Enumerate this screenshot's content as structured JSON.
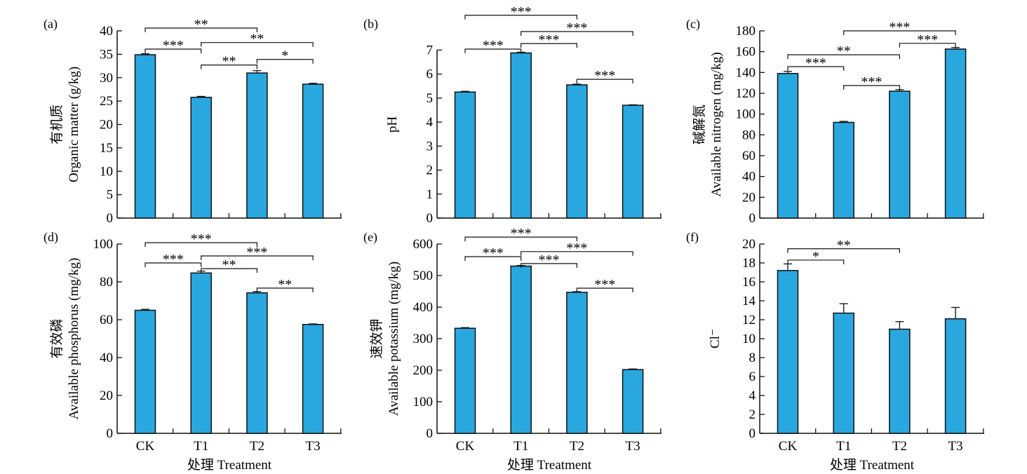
{
  "chart_data": [
    {
      "panel_label": "(a)",
      "type": "bar",
      "categories": [
        "CK",
        "T1",
        "T2",
        "T3"
      ],
      "values": [
        34.9,
        25.8,
        31.0,
        28.6
      ],
      "errors": [
        0.2,
        0.2,
        0.5,
        0.2
      ],
      "ylabel_cn": "有机质",
      "ylabel": "Organic matter (g/kg)",
      "ylim": [
        0,
        40
      ],
      "yticks": [
        0,
        5,
        10,
        15,
        20,
        25,
        30,
        35,
        40
      ],
      "xlabel": "",
      "show_xticklabels": false,
      "significance": [
        {
          "pair": [
            0,
            2
          ],
          "label": "**",
          "level": 40.6
        },
        {
          "pair": [
            0,
            1
          ],
          "label": "***",
          "level": 36.1
        },
        {
          "pair": [
            1,
            3
          ],
          "label": "**",
          "level": 37.5
        },
        {
          "pair": [
            1,
            2
          ],
          "label": "**",
          "level": 32.7
        },
        {
          "pair": [
            2,
            3
          ],
          "label": "*",
          "level": 33.9
        }
      ]
    },
    {
      "panel_label": "(b)",
      "type": "bar",
      "categories": [
        "CK",
        "T1",
        "T2",
        "T3"
      ],
      "values": [
        5.25,
        6.88,
        5.55,
        4.7
      ],
      "errors": [
        0.03,
        0.03,
        0.03,
        0.02
      ],
      "ylabel_cn": "",
      "ylabel": "pH",
      "ylim": [
        0,
        7.8
      ],
      "yticks": [
        0,
        1,
        2,
        3,
        4,
        5,
        6,
        7
      ],
      "xlabel": "",
      "show_xticklabels": false,
      "significance": [
        {
          "pair": [
            0,
            2
          ],
          "label": "***",
          "level": 8.45
        },
        {
          "pair": [
            0,
            1
          ],
          "label": "***",
          "level": 7.04
        },
        {
          "pair": [
            1,
            3
          ],
          "label": "***",
          "level": 7.77
        },
        {
          "pair": [
            1,
            2
          ],
          "label": "***",
          "level": 7.27
        },
        {
          "pair": [
            2,
            3
          ],
          "label": "***",
          "level": 5.78
        }
      ]
    },
    {
      "panel_label": "(c)",
      "type": "bar",
      "categories": [
        "CK",
        "T1",
        "T2",
        "T3"
      ],
      "values": [
        139,
        92,
        122,
        162.5
      ],
      "errors": [
        2,
        1,
        1.5,
        1.5
      ],
      "ylabel_cn": "碱解氮",
      "ylabel": "Available nitrogen (mg/kg)",
      "ylim": [
        0,
        180
      ],
      "yticks": [
        0,
        20,
        40,
        60,
        80,
        100,
        120,
        140,
        160,
        180
      ],
      "xlabel": "",
      "show_xticklabels": false,
      "significance": [
        {
          "pair": [
            1,
            3
          ],
          "label": "***",
          "level": 180
        },
        {
          "pair": [
            0,
            2
          ],
          "label": "**",
          "level": 157
        },
        {
          "pair": [
            0,
            1
          ],
          "label": "***",
          "level": 145.6
        },
        {
          "pair": [
            2,
            3
          ],
          "label": "***",
          "level": 168
        },
        {
          "pair": [
            1,
            2
          ],
          "label": "***",
          "level": 127.4
        }
      ]
    },
    {
      "panel_label": "(d)",
      "type": "bar",
      "categories": [
        "CK",
        "T1",
        "T2",
        "T3"
      ],
      "values": [
        65,
        84.7,
        74.2,
        57.5
      ],
      "errors": [
        0.5,
        1,
        0.7,
        0.3
      ],
      "ylabel_cn": "有效磷",
      "ylabel": "Available phosphorus (mg/kg)",
      "ylim": [
        0,
        100
      ],
      "yticks": [
        0,
        20,
        40,
        60,
        80,
        100
      ],
      "xlabel": "处理 Treatment",
      "show_xticklabels": true,
      "significance": [
        {
          "pair": [
            0,
            2
          ],
          "label": "***",
          "level": 100.7
        },
        {
          "pair": [
            0,
            1
          ],
          "label": "***",
          "level": 90
        },
        {
          "pair": [
            1,
            3
          ],
          "label": "***",
          "level": 93.7
        },
        {
          "pair": [
            1,
            2
          ],
          "label": "**",
          "level": 87
        },
        {
          "pair": [
            2,
            3
          ],
          "label": "**",
          "level": 76.7
        }
      ]
    },
    {
      "panel_label": "(e)",
      "type": "bar",
      "categories": [
        "CK",
        "T1",
        "T2",
        "T3"
      ],
      "values": [
        333,
        530,
        447,
        202
      ],
      "errors": [
        2,
        2,
        2,
        2
      ],
      "ylabel_cn": "速效钾",
      "ylabel": "Available potassium (mg/kg)",
      "ylim": [
        0,
        600
      ],
      "yticks": [
        0,
        100,
        200,
        300,
        400,
        500,
        600
      ],
      "xlabel": "处理 Treatment",
      "show_xticklabels": true,
      "significance": [
        {
          "pair": [
            0,
            2
          ],
          "label": "***",
          "level": 622
        },
        {
          "pair": [
            0,
            1
          ],
          "label": "***",
          "level": 560
        },
        {
          "pair": [
            1,
            3
          ],
          "label": "***",
          "level": 576
        },
        {
          "pair": [
            1,
            2
          ],
          "label": "***",
          "level": 538
        },
        {
          "pair": [
            2,
            3
          ],
          "label": "***",
          "level": 460
        }
      ]
    },
    {
      "panel_label": "(f)",
      "type": "bar",
      "categories": [
        "CK",
        "T1",
        "T2",
        "T3"
      ],
      "values": [
        17.2,
        12.7,
        11.0,
        12.1
      ],
      "errors": [
        0.7,
        1.0,
        0.8,
        1.2
      ],
      "ylabel_cn": "",
      "ylabel": "Cl⁻",
      "ylim": [
        0,
        20
      ],
      "yticks": [
        0,
        2,
        4,
        6,
        8,
        10,
        12,
        14,
        16,
        18,
        20
      ],
      "xlabel": "处理 Treatment",
      "show_xticklabels": true,
      "significance": [
        {
          "pair": [
            0,
            2
          ],
          "label": "**",
          "level": 19.5
        },
        {
          "pair": [
            0,
            1
          ],
          "label": "*",
          "level": 18.3
        }
      ]
    }
  ],
  "colors": {
    "bar_fill": "#29a8e0",
    "bar_stroke": "#111111",
    "axis": "#111111"
  }
}
